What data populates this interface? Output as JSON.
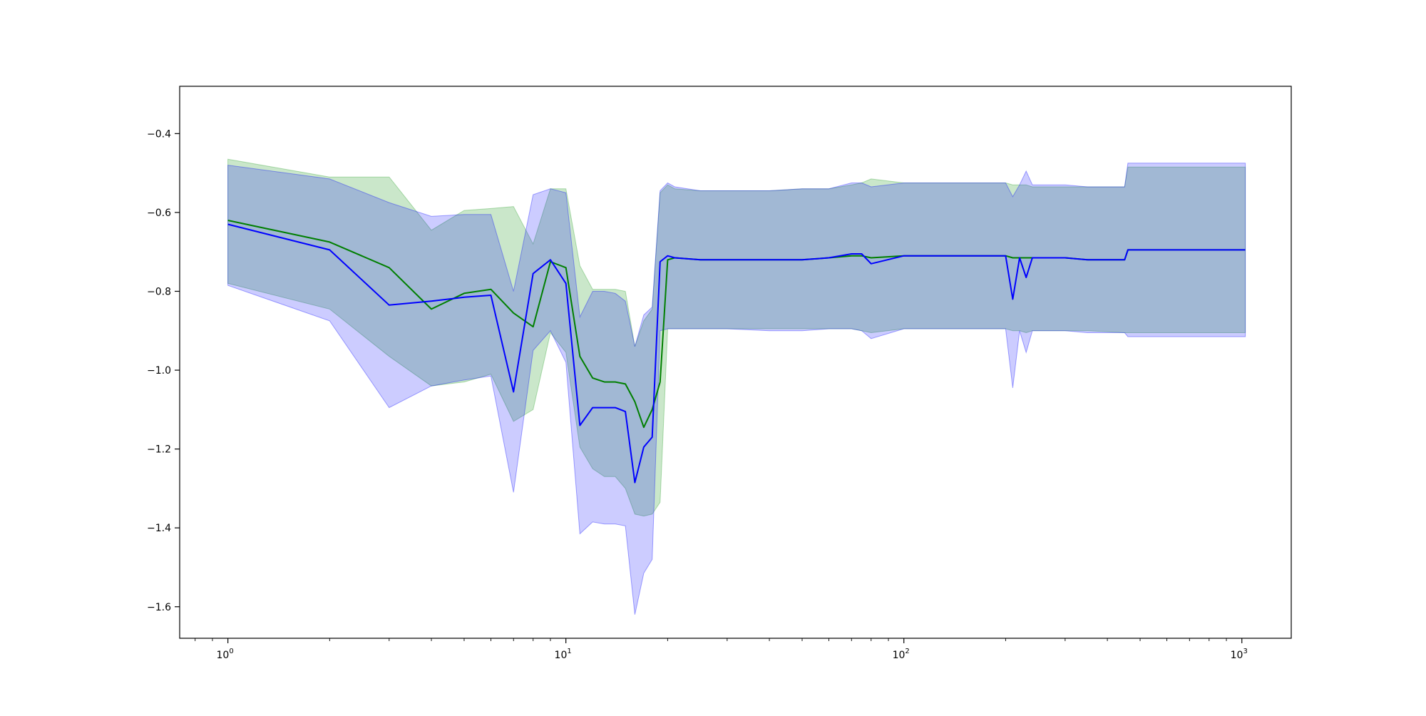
{
  "chart_data": {
    "type": "line",
    "title": "",
    "xlabel": "",
    "ylabel": "",
    "xscale": "log",
    "xlim": [
      0.72,
      1400
    ],
    "ylim": [
      -1.68,
      -0.28
    ],
    "grid": false,
    "x_ticks": [
      {
        "value": 1,
        "label": "10",
        "exp": "0"
      },
      {
        "value": 10,
        "label": "10",
        "exp": "1"
      },
      {
        "value": 100,
        "label": "10",
        "exp": "2"
      },
      {
        "value": 1000,
        "label": "10",
        "exp": "3"
      }
    ],
    "y_ticks": [
      {
        "value": -0.4,
        "label": "−0.4"
      },
      {
        "value": -0.6,
        "label": "−0.6"
      },
      {
        "value": -0.8,
        "label": "−0.8"
      },
      {
        "value": -1.0,
        "label": "−1.0"
      },
      {
        "value": -1.2,
        "label": "−1.2"
      },
      {
        "value": -1.4,
        "label": "−1.4"
      },
      {
        "value": -1.6,
        "label": "−1.6"
      }
    ],
    "colors": {
      "green_line": "#007f00",
      "green_band": "#2ca02c",
      "blue_line": "#0000ff",
      "blue_band": "#0000ff"
    },
    "series": [
      {
        "color": "green",
        "x": [
          1,
          2,
          3,
          4,
          5,
          6,
          7,
          8,
          9,
          10,
          11,
          12,
          13,
          14,
          15,
          16,
          17,
          18,
          19,
          20,
          21,
          25,
          30,
          40,
          50,
          60,
          70,
          75,
          80,
          100,
          150,
          200,
          210,
          220,
          230,
          240,
          280,
          300,
          350,
          450,
          460,
          500,
          1024
        ],
        "y": [
          -0.62,
          -0.675,
          -0.74,
          -0.845,
          -0.805,
          -0.795,
          -0.855,
          -0.89,
          -0.725,
          -0.74,
          -0.965,
          -1.02,
          -1.03,
          -1.03,
          -1.035,
          -1.08,
          -1.145,
          -1.1,
          -1.03,
          -0.72,
          -0.715,
          -0.72,
          -0.72,
          -0.72,
          -0.72,
          -0.715,
          -0.71,
          -0.71,
          -0.715,
          -0.71,
          -0.71,
          -0.71,
          -0.715,
          -0.715,
          -0.715,
          -0.715,
          -0.715,
          -0.715,
          -0.72,
          -0.72,
          -0.695,
          -0.695,
          -0.695
        ],
        "upper": [
          -0.465,
          -0.51,
          -0.51,
          -0.645,
          -0.595,
          -0.59,
          -0.585,
          -0.68,
          -0.54,
          -0.54,
          -0.735,
          -0.795,
          -0.795,
          -0.795,
          -0.8,
          -0.94,
          -0.875,
          -0.845,
          -0.55,
          -0.53,
          -0.54,
          -0.545,
          -0.545,
          -0.545,
          -0.54,
          -0.54,
          -0.53,
          -0.525,
          -0.515,
          -0.525,
          -0.525,
          -0.525,
          -0.53,
          -0.53,
          -0.53,
          -0.535,
          -0.535,
          -0.535,
          -0.535,
          -0.535,
          -0.485,
          -0.485,
          -0.485
        ],
        "lower": [
          -0.78,
          -0.845,
          -0.965,
          -1.04,
          -1.03,
          -1.01,
          -1.13,
          -1.1,
          -0.905,
          -0.955,
          -1.195,
          -1.25,
          -1.27,
          -1.27,
          -1.3,
          -1.365,
          -1.37,
          -1.365,
          -1.335,
          -0.895,
          -0.895,
          -0.895,
          -0.895,
          -0.895,
          -0.895,
          -0.895,
          -0.895,
          -0.9,
          -0.905,
          -0.895,
          -0.895,
          -0.895,
          -0.9,
          -0.9,
          -0.905,
          -0.9,
          -0.9,
          -0.9,
          -0.9,
          -0.905,
          -0.905,
          -0.905,
          -0.905
        ]
      },
      {
        "color": "blue",
        "x": [
          1,
          2,
          3,
          4,
          5,
          6,
          7,
          8,
          9,
          10,
          11,
          12,
          13,
          14,
          15,
          16,
          17,
          18,
          19,
          20,
          21,
          25,
          30,
          40,
          50,
          60,
          70,
          75,
          80,
          100,
          150,
          200,
          210,
          220,
          230,
          240,
          280,
          300,
          350,
          450,
          460,
          500,
          1024
        ],
        "y": [
          -0.63,
          -0.695,
          -0.835,
          -0.825,
          -0.815,
          -0.81,
          -1.055,
          -0.755,
          -0.72,
          -0.78,
          -1.14,
          -1.095,
          -1.095,
          -1.095,
          -1.105,
          -1.285,
          -1.195,
          -1.17,
          -0.725,
          -0.71,
          -0.715,
          -0.72,
          -0.72,
          -0.72,
          -0.72,
          -0.715,
          -0.705,
          -0.705,
          -0.73,
          -0.71,
          -0.71,
          -0.71,
          -0.82,
          -0.715,
          -0.765,
          -0.715,
          -0.715,
          -0.715,
          -0.72,
          -0.72,
          -0.695,
          -0.695,
          -0.695
        ],
        "upper": [
          -0.48,
          -0.515,
          -0.575,
          -0.61,
          -0.605,
          -0.605,
          -0.8,
          -0.555,
          -0.54,
          -0.55,
          -0.865,
          -0.8,
          -0.8,
          -0.805,
          -0.825,
          -0.94,
          -0.86,
          -0.84,
          -0.545,
          -0.525,
          -0.535,
          -0.545,
          -0.545,
          -0.545,
          -0.54,
          -0.54,
          -0.525,
          -0.525,
          -0.535,
          -0.525,
          -0.525,
          -0.525,
          -0.56,
          -0.53,
          -0.495,
          -0.53,
          -0.53,
          -0.53,
          -0.535,
          -0.535,
          -0.475,
          -0.475,
          -0.475
        ],
        "lower": [
          -0.785,
          -0.875,
          -1.095,
          -1.04,
          -1.025,
          -1.015,
          -1.31,
          -0.95,
          -0.9,
          -0.98,
          -1.415,
          -1.385,
          -1.39,
          -1.39,
          -1.395,
          -1.62,
          -1.515,
          -1.48,
          -0.9,
          -0.895,
          -0.895,
          -0.895,
          -0.895,
          -0.9,
          -0.9,
          -0.895,
          -0.895,
          -0.9,
          -0.92,
          -0.895,
          -0.895,
          -0.895,
          -1.045,
          -0.9,
          -0.955,
          -0.9,
          -0.9,
          -0.9,
          -0.905,
          -0.905,
          -0.915,
          -0.915,
          -0.915
        ]
      }
    ]
  }
}
